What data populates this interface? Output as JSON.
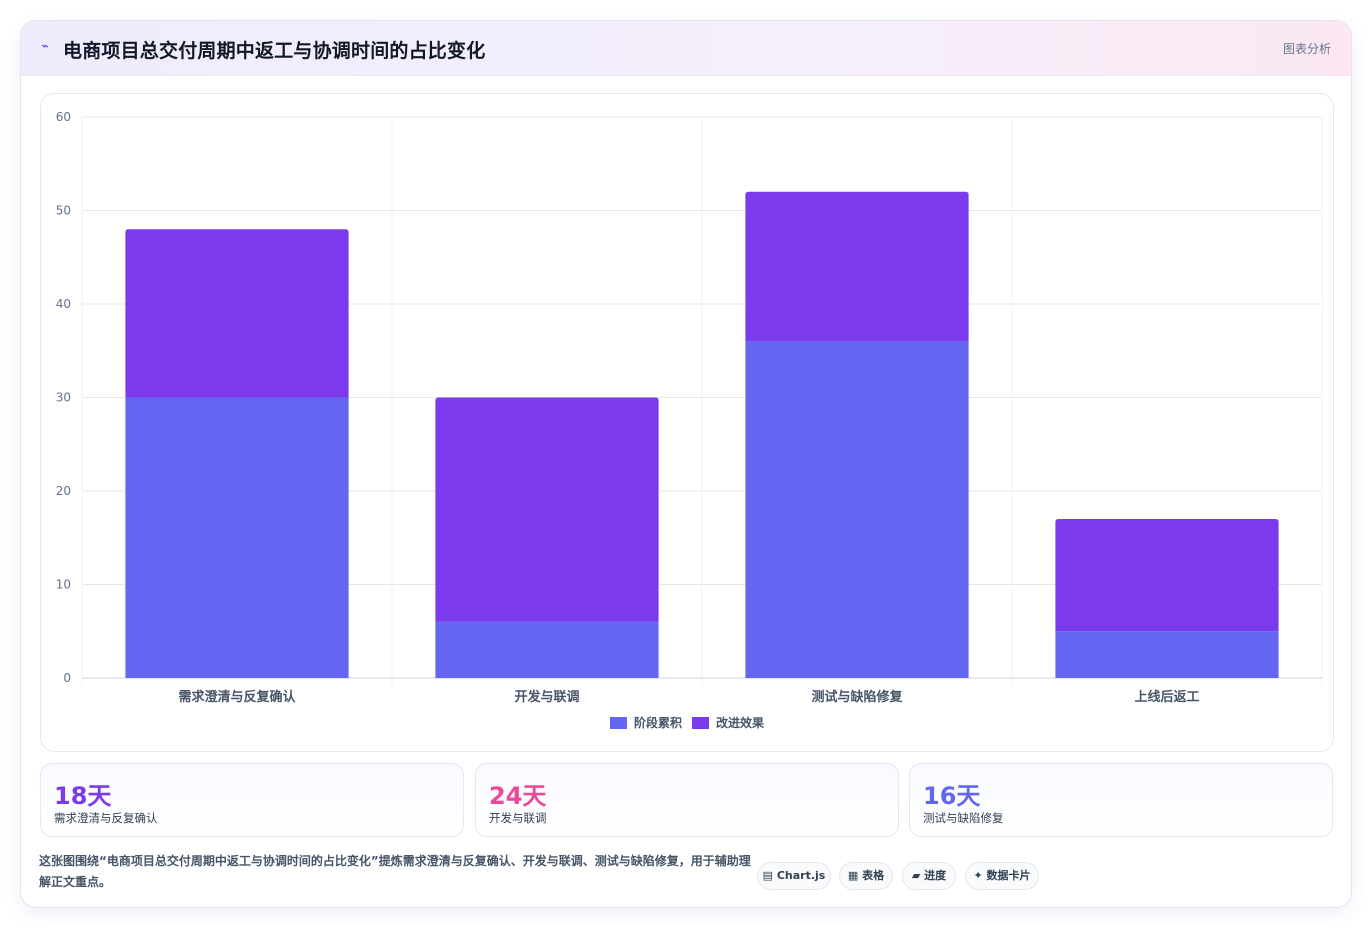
{
  "header": {
    "icon": "chart-line-icon",
    "title": "电商项目总交付周期中返工与协调时间的占比变化",
    "tag": "图表分析"
  },
  "chart_data": {
    "type": "bar",
    "stacked": true,
    "categories": [
      "需求澄清与反复确认",
      "开发与联调",
      "测试与缺陷修复",
      "上线后返工"
    ],
    "series": [
      {
        "name": "阶段累积",
        "color": "#6366f1",
        "values": [
          30,
          6,
          36,
          5
        ]
      },
      {
        "name": "改进效果",
        "color": "#7c3aed",
        "values": [
          18,
          24,
          16,
          12
        ]
      }
    ],
    "ylim": [
      0,
      60
    ],
    "yticks": [
      0,
      10,
      20,
      30,
      40,
      50,
      60
    ],
    "grid": true,
    "legend": "bottom"
  },
  "stats": [
    {
      "value": "18天",
      "label": "需求澄清与反复确认",
      "color": "#7c3aed"
    },
    {
      "value": "24天",
      "label": "开发与联调",
      "color": "#ec4899"
    },
    {
      "value": "16天",
      "label": "测试与缺陷修复",
      "color": "#6366f1"
    }
  ],
  "footer": {
    "text": "这张图围绕“电商项目总交付周期中返工与协调时间的占比变化”提炼需求澄清与反复确认、开发与联调、测试与缺陷修复，用于辅助理解正文重点。",
    "chips": [
      "▤ Chart.js",
      "▦ 表格",
      "▰ 进度",
      "✦ 数据卡片"
    ]
  }
}
